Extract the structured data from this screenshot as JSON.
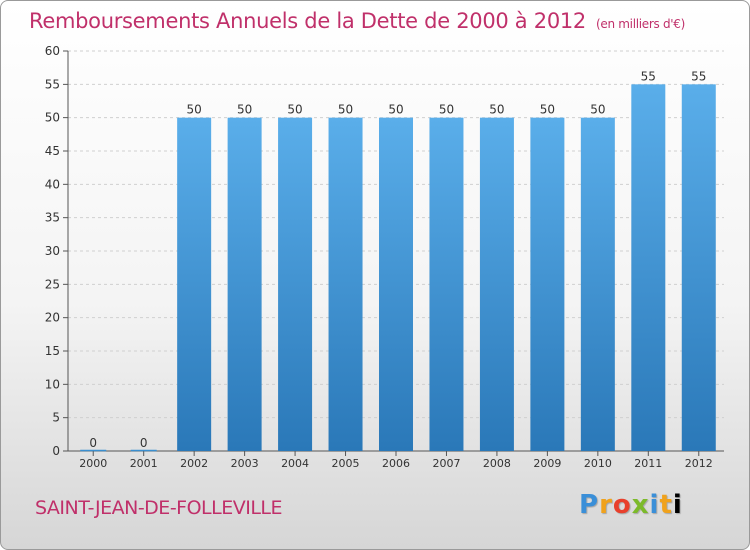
{
  "chart_data": {
    "type": "bar",
    "title": "Remboursements Annuels de la Dette de 2000 à 2012",
    "subtitle": "(en milliers d'€)",
    "categories": [
      "2000",
      "2001",
      "2002",
      "2003",
      "2004",
      "2005",
      "2006",
      "2007",
      "2008",
      "2009",
      "2010",
      "2011",
      "2012"
    ],
    "values": [
      0,
      0,
      50,
      50,
      50,
      50,
      50,
      50,
      50,
      50,
      50,
      55,
      55
    ],
    "ylim": [
      0,
      60
    ],
    "yticks": [
      0,
      5,
      10,
      15,
      20,
      25,
      30,
      35,
      40,
      45,
      50,
      55,
      60
    ],
    "xlabel": "",
    "ylabel": "",
    "grid": "horizontal",
    "bar_color_top": "#5aaeea",
    "bar_color_bottom": "#2a78b8"
  },
  "footer": {
    "city": "SAINT-JEAN-DE-FOLLEVILLE",
    "brand": [
      "P",
      "r",
      "o",
      "x",
      "i",
      "t",
      "i"
    ]
  }
}
